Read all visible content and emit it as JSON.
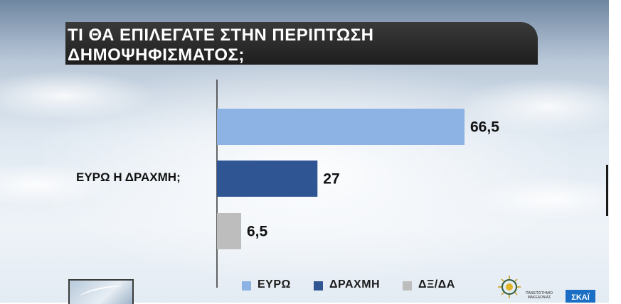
{
  "title": {
    "line1": "ΤΙ ΘΑ ΕΠΙΛΕΓΑΤΕ ΣΤΗΝ ΠΕΡΙΠΤΩΣΗ",
    "line2": "ΔΗΜΟΨΗΦΙΣΜΑΤΟΣ;"
  },
  "chart_data": {
    "type": "bar",
    "orientation": "horizontal",
    "title": "ΤΙ ΘΑ ΕΠΙΛΕΓΑΤΕ ΣΤΗΝ ΠΕΡΙΠΤΩΣΗ ΔΗΜΟΨΗΦΙΣΜΑΤΟΣ;",
    "categories": [
      "ΕΥΡΩ Η ΔΡΑΧΜΗ;"
    ],
    "series": [
      {
        "name": "ΕΥΡΩ",
        "values": [
          66.5
        ],
        "label": "66,5",
        "color": "#8cb3e3"
      },
      {
        "name": "ΔΡΑΧΜΗ",
        "values": [
          27
        ],
        "label": "27",
        "color": "#2f5593"
      },
      {
        "name": "ΔΞ/ΔΑ",
        "values": [
          6.5
        ],
        "label": "6,5",
        "color": "#bdbdbd"
      }
    ],
    "xlim": [
      0,
      66.5
    ],
    "grid": false,
    "legend": "bottom"
  },
  "logos": {
    "university_caption": "ΠΑΝΕΠΙΣΤΗΜΙΟ ΜΑΚΕΔΟΝΙΑΣ",
    "channel": "ΣΚΑΪ"
  }
}
